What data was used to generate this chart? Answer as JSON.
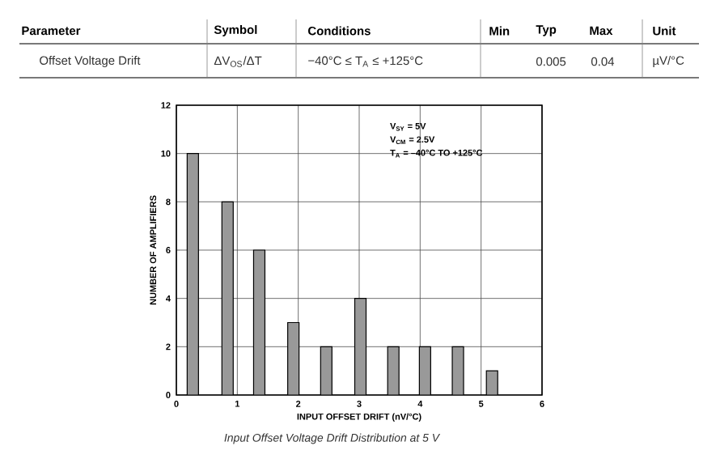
{
  "chart_data": {
    "type": "bar",
    "xlabel": "INPUT OFFSET DRIFT (nV/°C)",
    "ylabel": "NUMBER OF AMPLIFIERS",
    "x": [
      0.27,
      0.84,
      1.36,
      1.92,
      2.46,
      3.02,
      3.56,
      4.08,
      4.62,
      5.18
    ],
    "values": [
      10,
      8,
      6,
      3,
      2,
      4,
      2,
      2,
      2,
      1
    ],
    "color": "#999999",
    "xlim": [
      0,
      6
    ],
    "xticks": [
      0,
      1,
      2,
      3,
      4,
      5,
      6
    ],
    "ylim": [
      0,
      12
    ],
    "yticks": [
      0,
      2,
      4,
      6,
      8,
      10,
      12
    ],
    "grid": true,
    "annotations": [
      "Parameter",
      "Symbol",
      "Conditions",
      "Min",
      "Typ",
      "Max",
      "Unit",
      "Offset Voltage Drift",
      "ΔV$_{OS}$/ΔT",
      "−40°C ≤ T$_{A}$ ≤ +125°C",
      "0.005",
      "0.04",
      "µV/°C",
      "V$_{SY}$ = 5V",
      "V$_{CM}$ = 2.5V",
      "T$_{A}$ = –40°C TO +125°C",
      "Input Offset Voltage Drift Distribution at 5 V"
    ]
  }
}
